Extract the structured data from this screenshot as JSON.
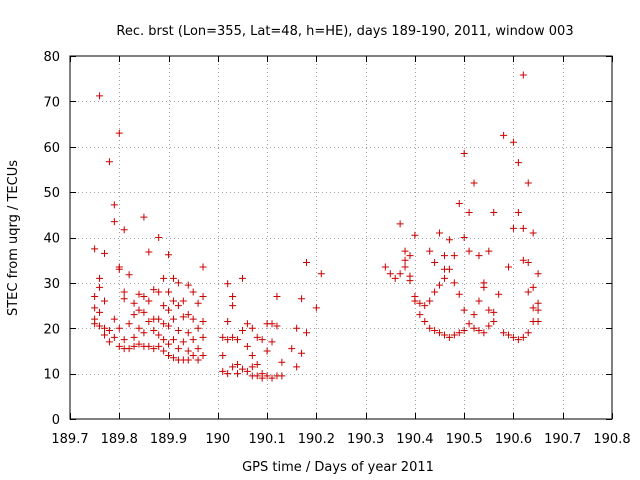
{
  "chart_data": {
    "type": "scatter",
    "title": "Rec. brst (Lon=355, Lat=48, h=HE), days 189-190, 2011, window 003",
    "xlabel": "GPS time / Days of year 2011",
    "ylabel": "STEC from uqrg / TECUs",
    "xlim": [
      189.7,
      190.8
    ],
    "ylim": [
      0,
      80
    ],
    "x_ticks": [
      189.7,
      189.8,
      189.9,
      190.0,
      190.1,
      190.2,
      190.3,
      190.4,
      190.5,
      190.6,
      190.7,
      190.8
    ],
    "x_tick_labels": [
      "189.7",
      "189.8",
      "189.9",
      "190",
      "190.1",
      "190.2",
      "190.3",
      "190.4",
      "190.5",
      "190.6",
      "190.7",
      "190.8"
    ],
    "y_ticks": [
      0,
      10,
      20,
      30,
      40,
      50,
      60,
      70,
      80
    ],
    "y_tick_labels": [
      "0",
      "10",
      "20",
      "30",
      "40",
      "50",
      "60",
      "70",
      "80"
    ],
    "marker": "+",
    "color": "#cc0000",
    "series": [
      {
        "name": "STEC",
        "points": [
          [
            189.75,
            37.5
          ],
          [
            189.75,
            27.0
          ],
          [
            189.75,
            24.5
          ],
          [
            189.75,
            22.0
          ],
          [
            189.75,
            21.0
          ],
          [
            189.76,
            71.2
          ],
          [
            189.76,
            31.0
          ],
          [
            189.76,
            29.0
          ],
          [
            189.76,
            23.5
          ],
          [
            189.76,
            20.5
          ],
          [
            189.77,
            36.5
          ],
          [
            189.77,
            26.0
          ],
          [
            189.77,
            20.0
          ],
          [
            189.77,
            18.5
          ],
          [
            189.78,
            56.7
          ],
          [
            189.78,
            19.5
          ],
          [
            189.78,
            17.0
          ],
          [
            189.79,
            47.2
          ],
          [
            189.79,
            43.5
          ],
          [
            189.79,
            22.0
          ],
          [
            189.79,
            18.0
          ],
          [
            189.8,
            63.0
          ],
          [
            189.8,
            33.5
          ],
          [
            189.8,
            33.0
          ],
          [
            189.8,
            20.0
          ],
          [
            189.8,
            16.0
          ],
          [
            189.81,
            41.7
          ],
          [
            189.81,
            28.0
          ],
          [
            189.81,
            26.5
          ],
          [
            189.81,
            17.5
          ],
          [
            189.81,
            15.5
          ],
          [
            189.82,
            31.8
          ],
          [
            189.82,
            21.0
          ],
          [
            189.82,
            15.5
          ],
          [
            189.83,
            25.5
          ],
          [
            189.83,
            23.0
          ],
          [
            189.83,
            18.0
          ],
          [
            189.83,
            16.0
          ],
          [
            189.84,
            27.5
          ],
          [
            189.84,
            24.0
          ],
          [
            189.84,
            20.0
          ],
          [
            189.84,
            16.5
          ],
          [
            189.85,
            44.5
          ],
          [
            189.85,
            27.0
          ],
          [
            189.85,
            23.5
          ],
          [
            189.85,
            19.0
          ],
          [
            189.85,
            16.0
          ],
          [
            189.86,
            36.8
          ],
          [
            189.86,
            26.0
          ],
          [
            189.86,
            21.5
          ],
          [
            189.86,
            16.0
          ],
          [
            189.87,
            28.5
          ],
          [
            189.87,
            22.0
          ],
          [
            189.87,
            19.5
          ],
          [
            189.87,
            15.5
          ],
          [
            189.88,
            40.0
          ],
          [
            189.88,
            28.0
          ],
          [
            189.88,
            22.0
          ],
          [
            189.88,
            18.5
          ],
          [
            189.88,
            16.0
          ],
          [
            189.89,
            31.0
          ],
          [
            189.89,
            25.0
          ],
          [
            189.89,
            21.0
          ],
          [
            189.89,
            17.5
          ],
          [
            189.89,
            15.0
          ],
          [
            189.9,
            36.2
          ],
          [
            189.9,
            28.0
          ],
          [
            189.9,
            24.0
          ],
          [
            189.9,
            20.5
          ],
          [
            189.9,
            16.5
          ],
          [
            189.9,
            14.0
          ],
          [
            189.91,
            31.0
          ],
          [
            189.91,
            26.0
          ],
          [
            189.91,
            22.0
          ],
          [
            189.91,
            17.5
          ],
          [
            189.91,
            13.5
          ],
          [
            189.92,
            30.0
          ],
          [
            189.92,
            25.0
          ],
          [
            189.92,
            19.5
          ],
          [
            189.92,
            15.5
          ],
          [
            189.92,
            13.0
          ],
          [
            189.93,
            26.0
          ],
          [
            189.93,
            22.5
          ],
          [
            189.93,
            17.0
          ],
          [
            189.93,
            13.0
          ],
          [
            189.94,
            29.5
          ],
          [
            189.94,
            23.0
          ],
          [
            189.94,
            19.0
          ],
          [
            189.94,
            15.0
          ],
          [
            189.94,
            13.0
          ],
          [
            189.95,
            28.0
          ],
          [
            189.95,
            22.0
          ],
          [
            189.95,
            17.5
          ],
          [
            189.95,
            14.0
          ],
          [
            189.96,
            25.5
          ],
          [
            189.96,
            20.0
          ],
          [
            189.96,
            15.5
          ],
          [
            189.96,
            13.0
          ],
          [
            189.97,
            33.5
          ],
          [
            189.97,
            27.0
          ],
          [
            189.97,
            21.5
          ],
          [
            189.97,
            18.0
          ],
          [
            189.97,
            14.0
          ],
          [
            190.01,
            18.0
          ],
          [
            190.01,
            14.0
          ],
          [
            190.01,
            10.5
          ],
          [
            190.02,
            29.8
          ],
          [
            190.02,
            21.5
          ],
          [
            190.02,
            17.5
          ],
          [
            190.02,
            10.0
          ],
          [
            190.03,
            27.0
          ],
          [
            190.03,
            25.0
          ],
          [
            190.03,
            18.0
          ],
          [
            190.03,
            11.5
          ],
          [
            190.04,
            17.5
          ],
          [
            190.04,
            12.0
          ],
          [
            190.04,
            10.0
          ],
          [
            190.05,
            31.0
          ],
          [
            190.05,
            19.5
          ],
          [
            190.05,
            11.0
          ],
          [
            190.06,
            21.0
          ],
          [
            190.06,
            16.0
          ],
          [
            190.06,
            10.5
          ],
          [
            190.07,
            20.0
          ],
          [
            190.07,
            14.0
          ],
          [
            190.07,
            11.5
          ],
          [
            190.07,
            9.5
          ],
          [
            190.08,
            18.0
          ],
          [
            190.08,
            12.0
          ],
          [
            190.08,
            9.5
          ],
          [
            190.09,
            17.5
          ],
          [
            190.09,
            10.0
          ],
          [
            190.09,
            9.0
          ],
          [
            190.1,
            21.0
          ],
          [
            190.1,
            15.0
          ],
          [
            190.1,
            9.5
          ],
          [
            190.11,
            21.0
          ],
          [
            190.11,
            17.0
          ],
          [
            190.11,
            9.0
          ],
          [
            190.12,
            27.0
          ],
          [
            190.12,
            20.5
          ],
          [
            190.12,
            9.5
          ],
          [
            190.13,
            12.5
          ],
          [
            190.13,
            9.5
          ],
          [
            190.15,
            15.5
          ],
          [
            190.16,
            11.5
          ],
          [
            190.16,
            20.0
          ],
          [
            190.17,
            26.5
          ],
          [
            190.17,
            14.5
          ],
          [
            190.18,
            34.5
          ],
          [
            190.18,
            19.0
          ],
          [
            190.2,
            24.5
          ],
          [
            190.21,
            32.0
          ],
          [
            190.34,
            33.5
          ],
          [
            190.35,
            32.0
          ],
          [
            190.36,
            31.0
          ],
          [
            190.37,
            43.0
          ],
          [
            190.37,
            32.0
          ],
          [
            190.38,
            37.0
          ],
          [
            190.38,
            35.0
          ],
          [
            190.38,
            33.5
          ],
          [
            190.39,
            36.0
          ],
          [
            190.39,
            31.5
          ],
          [
            190.39,
            30.5
          ],
          [
            190.4,
            40.5
          ],
          [
            190.4,
            27.0
          ],
          [
            190.4,
            26.0
          ],
          [
            190.41,
            23.0
          ],
          [
            190.41,
            25.5
          ],
          [
            190.42,
            25.0
          ],
          [
            190.42,
            21.5
          ],
          [
            190.43,
            37.0
          ],
          [
            190.43,
            26.0
          ],
          [
            190.43,
            20.0
          ],
          [
            190.44,
            34.5
          ],
          [
            190.44,
            28.0
          ],
          [
            190.44,
            19.5
          ],
          [
            190.45,
            41.0
          ],
          [
            190.45,
            29.5
          ],
          [
            190.45,
            19.0
          ],
          [
            190.46,
            36.0
          ],
          [
            190.46,
            33.0
          ],
          [
            190.46,
            31.0
          ],
          [
            190.46,
            18.5
          ],
          [
            190.47,
            39.5
          ],
          [
            190.47,
            33.0
          ],
          [
            190.47,
            18.0
          ],
          [
            190.48,
            36.0
          ],
          [
            190.48,
            30.0
          ],
          [
            190.48,
            18.5
          ],
          [
            190.49,
            47.5
          ],
          [
            190.49,
            27.5
          ],
          [
            190.49,
            19.0
          ],
          [
            190.5,
            58.5
          ],
          [
            190.5,
            40.0
          ],
          [
            190.5,
            24.0
          ],
          [
            190.5,
            19.5
          ],
          [
            190.51,
            45.5
          ],
          [
            190.51,
            37.0
          ],
          [
            190.51,
            21.0
          ],
          [
            190.52,
            52.0
          ],
          [
            190.52,
            23.0
          ],
          [
            190.52,
            20.0
          ],
          [
            190.53,
            36.0
          ],
          [
            190.53,
            26.0
          ],
          [
            190.53,
            19.5
          ],
          [
            190.54,
            30.0
          ],
          [
            190.54,
            29.0
          ],
          [
            190.54,
            19.0
          ],
          [
            190.55,
            37.0
          ],
          [
            190.55,
            24.0
          ],
          [
            190.55,
            20.5
          ],
          [
            190.56,
            45.5
          ],
          [
            190.56,
            23.5
          ],
          [
            190.56,
            21.5
          ],
          [
            190.57,
            27.5
          ],
          [
            190.58,
            62.5
          ],
          [
            190.58,
            19.0
          ],
          [
            190.59,
            33.5
          ],
          [
            190.59,
            18.5
          ],
          [
            190.6,
            61.0
          ],
          [
            190.6,
            42.0
          ],
          [
            190.6,
            18.0
          ],
          [
            190.61,
            56.5
          ],
          [
            190.61,
            45.5
          ],
          [
            190.61,
            17.5
          ],
          [
            190.62,
            75.8
          ],
          [
            190.62,
            42.0
          ],
          [
            190.62,
            35.0
          ],
          [
            190.62,
            18.0
          ],
          [
            190.63,
            52.0
          ],
          [
            190.63,
            34.5
          ],
          [
            190.63,
            28.0
          ],
          [
            190.63,
            19.0
          ],
          [
            190.64,
            41.0
          ],
          [
            190.64,
            29.0
          ],
          [
            190.64,
            24.5
          ],
          [
            190.64,
            21.5
          ],
          [
            190.65,
            32.0
          ],
          [
            190.65,
            25.5
          ],
          [
            190.65,
            24.0
          ],
          [
            190.65,
            21.5
          ]
        ]
      }
    ]
  }
}
